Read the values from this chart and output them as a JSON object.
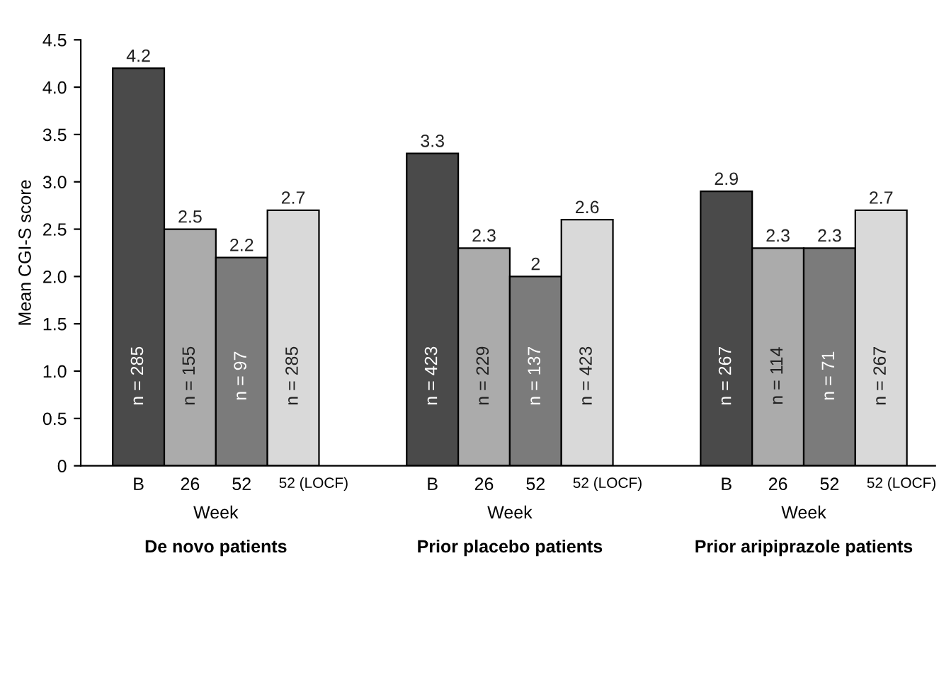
{
  "chart_data": {
    "type": "bar",
    "ylabel": "Mean CGI-S score",
    "xlabel": "Week",
    "categories": [
      "De novo patients",
      "Prior placebo patients",
      "Prior aripiprazole patients"
    ],
    "series": [
      {
        "name": "B",
        "color": "#4a4a4a",
        "values": [
          4.2,
          3.3,
          2.9
        ]
      },
      {
        "name": "26",
        "color": "#ababab",
        "values": [
          2.5,
          2.3,
          2.3
        ]
      },
      {
        "name": "52",
        "color": "#7b7b7b",
        "values": [
          2.2,
          2,
          2.3
        ]
      },
      {
        "name": "52 (LOCF)",
        "color": "#d9d9d9",
        "values": [
          2.7,
          2.6,
          2.7
        ]
      }
    ],
    "annotations": [
      "n = 285",
      "n = 155",
      "n = 97",
      "n = 285",
      "n = 423",
      "n = 229",
      "n = 137",
      "n = 423",
      "n = 267",
      "n = 114",
      "n = 71",
      "n = 267"
    ],
    "ylim": [
      0,
      4.5
    ],
    "yticks": [
      0,
      {
        "value": 0.5,
        "label": "0.5"
      },
      {
        "value": 1,
        "label": "1.0"
      },
      {
        "value": 1.5,
        "label": "1.5"
      },
      {
        "value": 2,
        "label": "2.0"
      },
      {
        "value": 2.5,
        "label": "2.5"
      },
      {
        "value": 3,
        "label": "3.0"
      },
      {
        "value": 3.5,
        "label": "3.5"
      },
      {
        "value": 4,
        "label": "4.0"
      },
      {
        "value": 4.5,
        "label": "4.5"
      }
    ],
    "data_labels": true,
    "grid": false,
    "legend": false
  }
}
